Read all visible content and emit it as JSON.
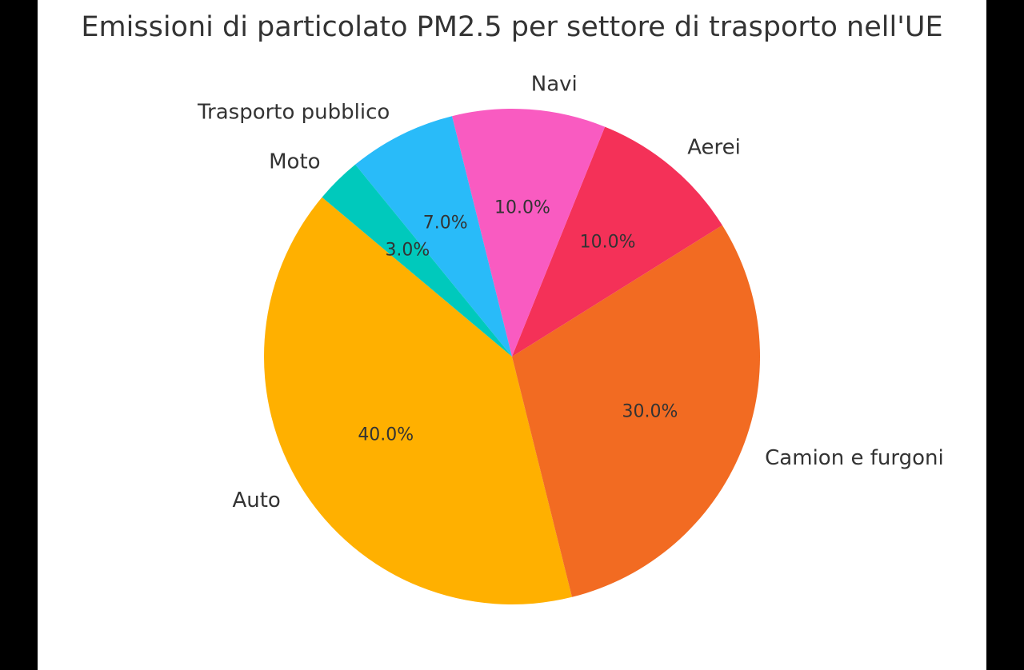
{
  "chart_data": {
    "type": "pie",
    "title": "Emissioni di particolato PM2.5 per settore di trasporto nell'UE",
    "categories": [
      "Auto",
      "Camion e furgoni",
      "Aerei",
      "Navi",
      "Trasporto pubblico",
      "Moto"
    ],
    "values": [
      40,
      30,
      10,
      10,
      7,
      3
    ],
    "value_labels": [
      "40.0%",
      "30.0%",
      "10.0%",
      "10.0%",
      "7.0%",
      "3.0%"
    ],
    "colors": [
      "#FFB000",
      "#F26B22",
      "#F43158",
      "#F95BC1",
      "#29BBF9",
      "#00C9BC"
    ],
    "start_angle": 140,
    "direction": "counterclockwise",
    "legend": "none"
  }
}
